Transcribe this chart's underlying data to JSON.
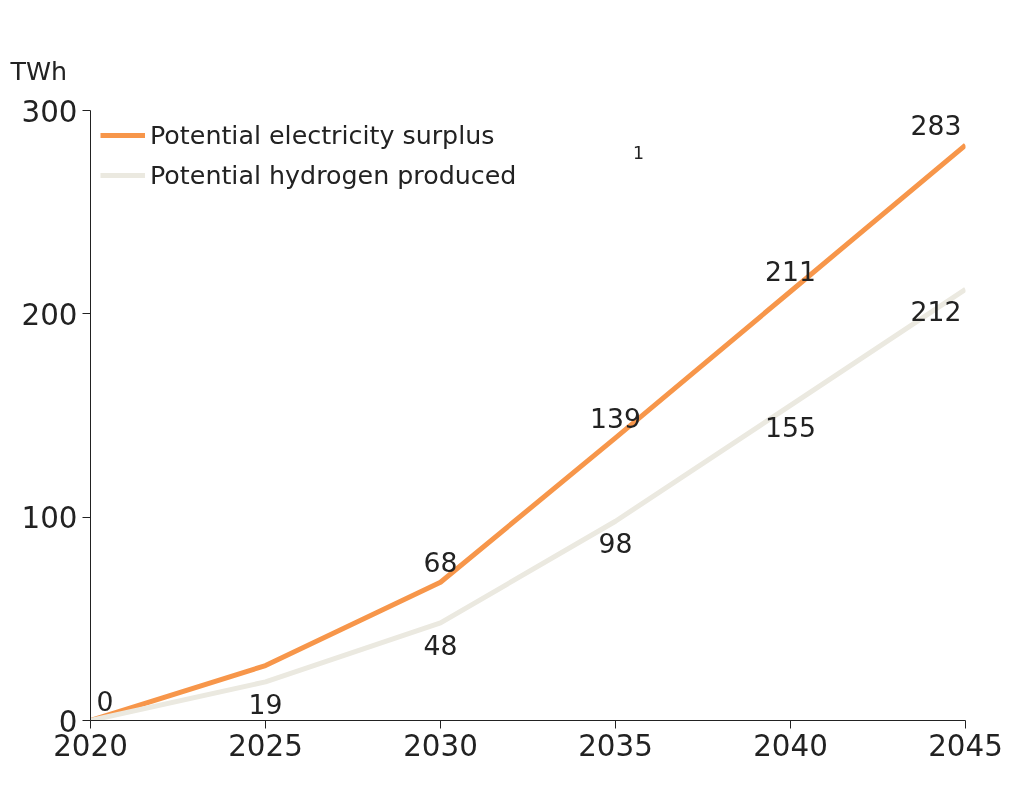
{
  "chart_data": {
    "type": "line",
    "ylabel": "TWh",
    "x": [
      2020,
      2025,
      2030,
      2035,
      2040,
      2045
    ],
    "series": [
      {
        "name": "Potential electricity surplus",
        "color": "#f7964a",
        "values": [
          0,
          27,
          68,
          139,
          211,
          283
        ],
        "value_labels": [
          "0",
          null,
          "68",
          "139",
          "211",
          "283"
        ]
      },
      {
        "name": "Potential hydrogen produced",
        "color": "#ebe9e0",
        "values": [
          0,
          19,
          48,
          98,
          155,
          212
        ],
        "value_labels": [
          null,
          "19",
          "48",
          "98",
          "155",
          "212"
        ]
      }
    ],
    "xlim": [
      2020,
      2045
    ],
    "xticks": [
      2020,
      2025,
      2030,
      2035,
      2040,
      2045
    ],
    "ylim": [
      0,
      300
    ],
    "yticks": [
      0,
      100,
      200,
      300
    ],
    "grid": false,
    "legend": "top left",
    "marker": "none",
    "line_style": "solid",
    "annotations": [
      "1"
    ]
  }
}
